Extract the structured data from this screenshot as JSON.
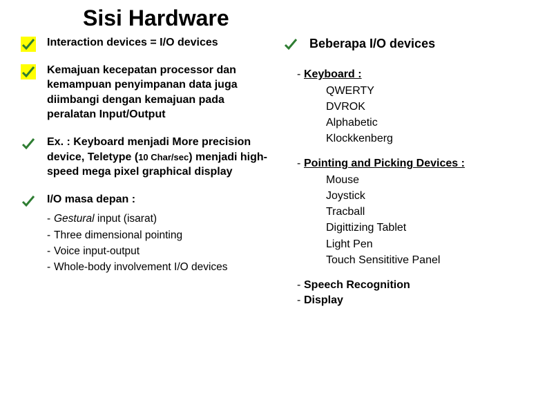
{
  "title": "Sisi Hardware",
  "left": {
    "b1": "Interaction devices = I/O devices",
    "b2": "Kemajuan kecepatan processor dan kemampuan penyimpanan data juga diimbangi dengan kemajuan pada peralatan Input/Output",
    "b3_line1": "Ex. : Keyboard  menjadi More precision device, Teletype (",
    "b3_small": "10 Char/sec",
    "b3_line2": ") menjadi high-speed mega pixel graphical display",
    "b4": "I/O masa depan :",
    "sub": [
      {
        "italic": "Gestural ",
        "rest": " input (isarat)"
      },
      {
        "italic": "",
        "rest": "Three dimensional pointing"
      },
      {
        "italic": "",
        "rest": "Voice input-output"
      },
      {
        "italic": "",
        "rest": "Whole-body involvement I/O devices"
      }
    ]
  },
  "right": {
    "header": "Beberapa I/O devices",
    "g1": {
      "head": "Keyboard :",
      "items": [
        "QWERTY",
        "DVROK",
        "Alphabetic",
        "Klockkenberg"
      ]
    },
    "g2": {
      "head": "Pointing and Picking Devices :",
      "items": [
        "Mouse",
        "Joystick",
        "Tracball",
        "Digittizing Tablet",
        "Light Pen",
        "Touch Sensititive Panel"
      ]
    },
    "g3": {
      "items": [
        "Speech Recognition",
        "Display"
      ]
    }
  },
  "check_color": "#4caf50"
}
